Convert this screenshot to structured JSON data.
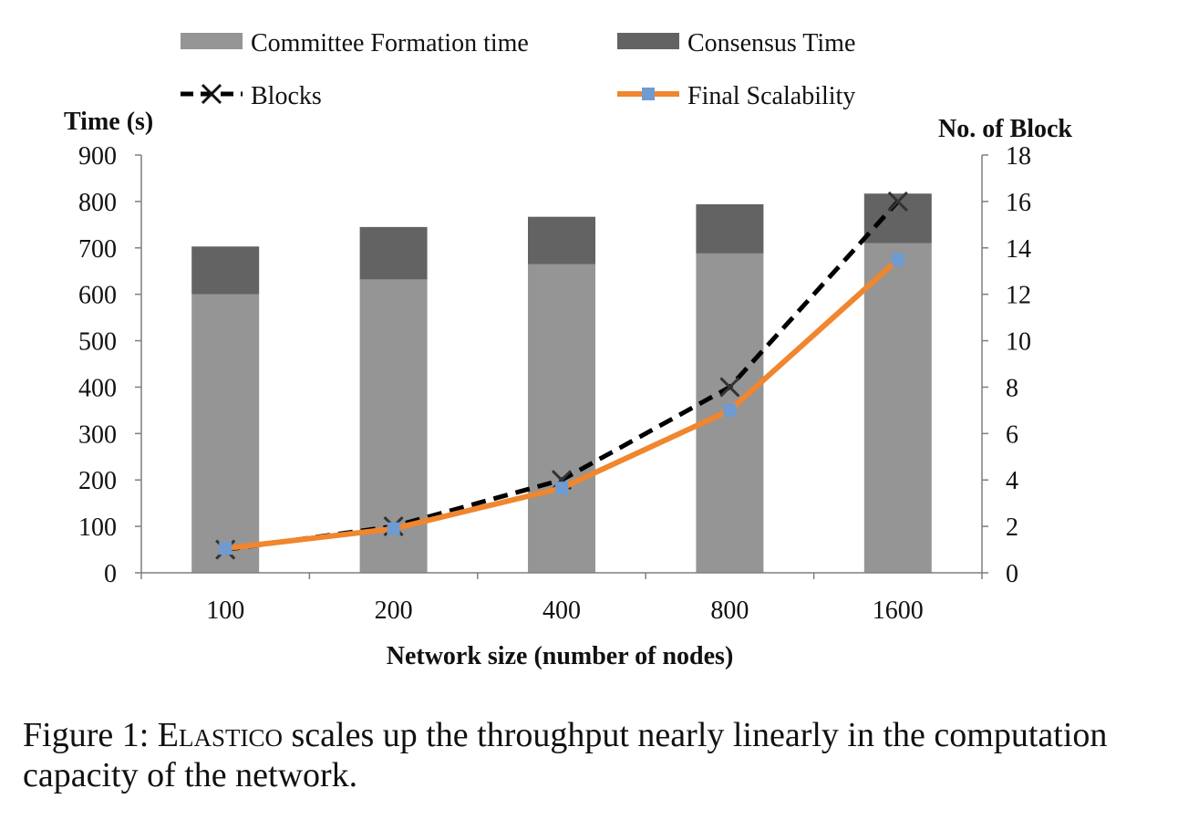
{
  "chart_data": {
    "type": "bar",
    "categories": [
      "100",
      "200",
      "400",
      "800",
      "1600"
    ],
    "series": [
      {
        "name": "Committee Formation time",
        "kind": "stacked-bar",
        "axis": "left",
        "color": "#959595",
        "values": [
          600,
          632,
          665,
          688,
          710
        ]
      },
      {
        "name": "Consensus Time",
        "kind": "stacked-bar",
        "axis": "left",
        "color": "#636363",
        "values": [
          103,
          113,
          102,
          106,
          107
        ]
      },
      {
        "name": "Blocks",
        "kind": "line",
        "style": "dashed",
        "marker": "x",
        "axis": "right",
        "color": "#000000",
        "values": [
          1,
          2,
          4,
          8,
          16
        ]
      },
      {
        "name": "Final Scalability",
        "kind": "line",
        "style": "solid",
        "marker": "square",
        "axis": "right",
        "color": "#f0862e",
        "marker_color": "#6f9bd1",
        "values": [
          1.05,
          1.9,
          3.65,
          7.0,
          13.5
        ]
      }
    ],
    "xlabel": "Network size (number of nodes)",
    "ylabel": "Time (s)",
    "y2label": "No. of Block",
    "ylim": [
      0,
      900
    ],
    "y2lim": [
      0,
      18
    ],
    "yticks": [
      "0",
      "100",
      "200",
      "300",
      "400",
      "500",
      "600",
      "700",
      "800",
      "900"
    ],
    "y2ticks": [
      "0",
      "2",
      "4",
      "6",
      "8",
      "10",
      "12",
      "14",
      "16",
      "18"
    ],
    "grid": false,
    "legend": "top"
  },
  "caption": {
    "prefix": "Figure 1: ",
    "system": "Elastico",
    "text": " scales up the throughput nearly linearly in the computation capacity of the network."
  }
}
